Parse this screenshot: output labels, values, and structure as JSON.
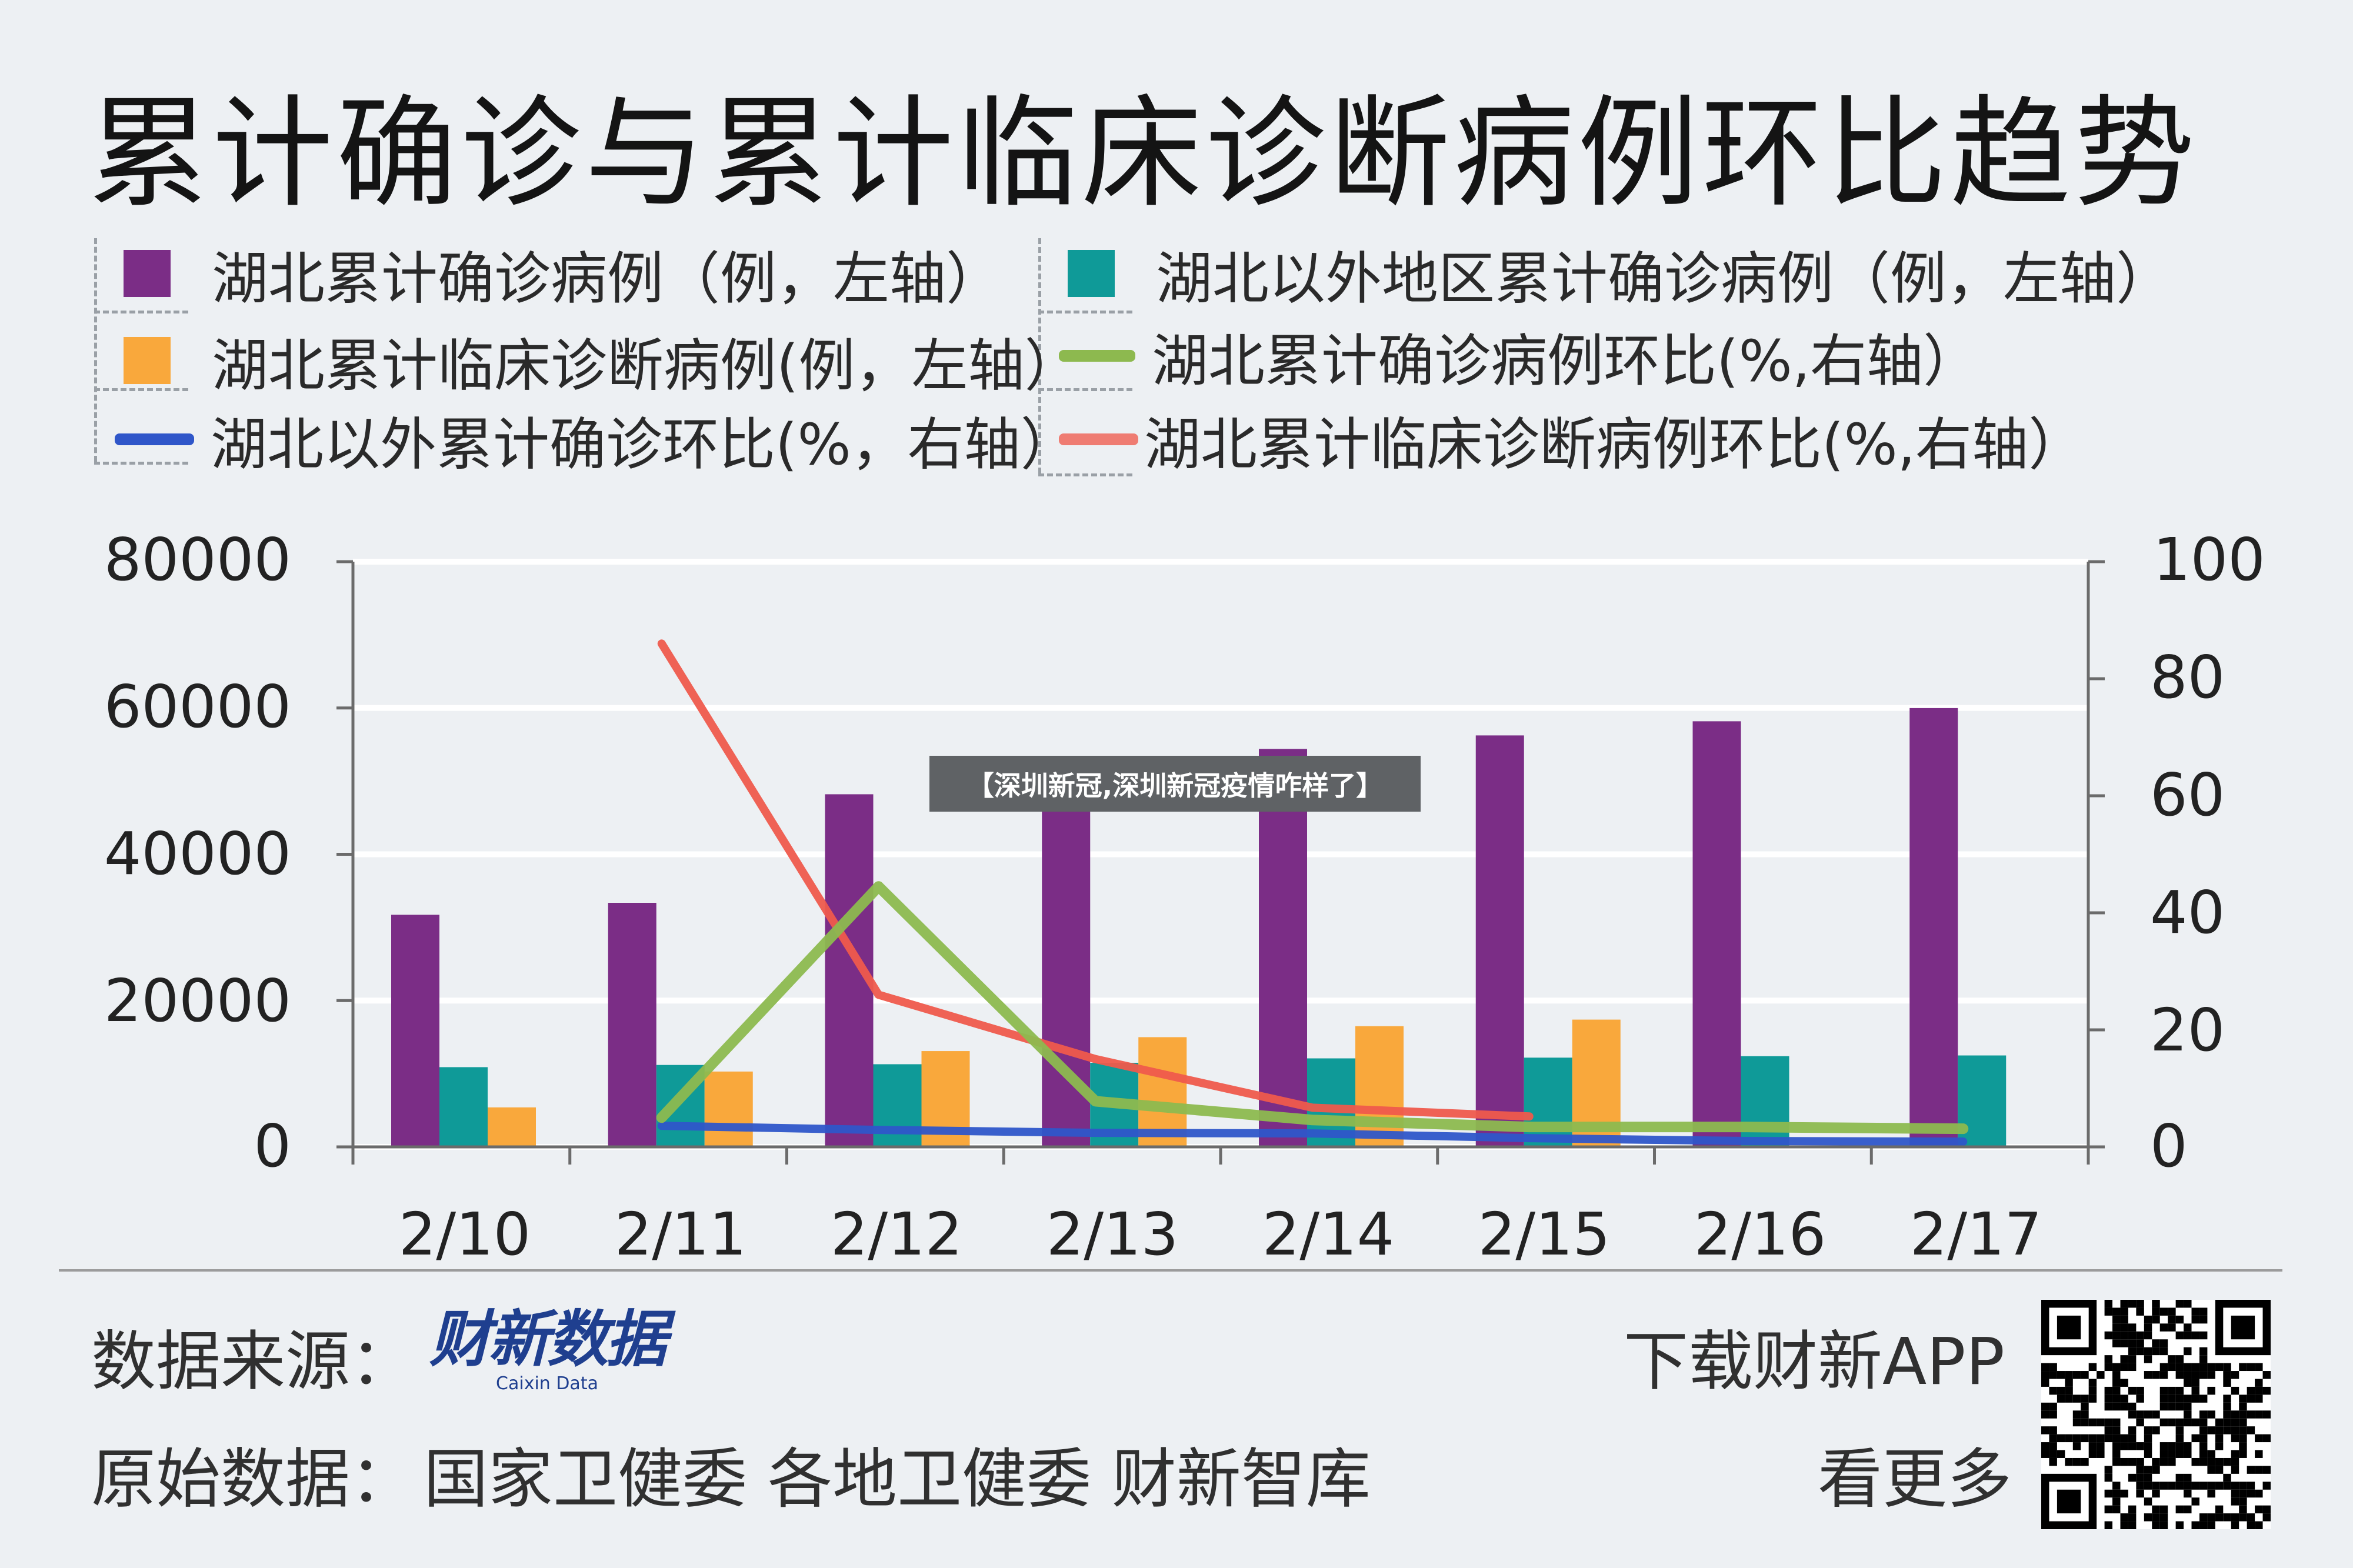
{
  "title": "累计确诊与累计临床诊断病例环比趋势",
  "legend": [
    {
      "label": "湖北累计确诊病例（例，左轴）",
      "color": "#7b2d86",
      "kind": "square"
    },
    {
      "label": "湖北以外地区累计确诊病例（例，左轴）",
      "color": "#0f9a98",
      "kind": "square"
    },
    {
      "label": "湖北累计临床诊断病例(例，左轴）",
      "color": "#f9a83c",
      "kind": "square"
    },
    {
      "label": "湖北累计确诊病例环比(%,右轴）",
      "color": "#8db94f",
      "kind": "line"
    },
    {
      "label": "湖北以外累计确诊环比(%，右轴）",
      "color": "#2f56c9",
      "kind": "line"
    },
    {
      "label": "湖北累计临床诊断病例环比(%,右轴）",
      "color": "#ef7c72",
      "kind": "line"
    }
  ],
  "chart_data": {
    "type": "bar",
    "categories": [
      "2/10",
      "2/11",
      "2/12",
      "2/13",
      "2/14",
      "2/15",
      "2/16",
      "2/17"
    ],
    "left_axis": {
      "ylim": [
        0,
        80000
      ],
      "ticks": [
        "80000",
        "60000",
        "40000",
        "20000",
        "0"
      ]
    },
    "right_axis": {
      "ylim": [
        0,
        100
      ],
      "ticks": [
        "100",
        "80",
        "60",
        "40",
        "20",
        "0"
      ]
    },
    "series": [
      {
        "name": "湖北累计确诊病例（例，左轴）",
        "type": "bar",
        "axis": "left",
        "color": "#7b2d86",
        "values": [
          31728,
          33366,
          48206,
          51986,
          54406,
          56249,
          58182,
          59989
        ]
      },
      {
        "name": "湖北以外地区累计确诊病例（例，左轴）",
        "type": "bar",
        "axis": "left",
        "color": "#0f9a98",
        "values": [
          10900,
          11200,
          11300,
          11500,
          12100,
          12200,
          12400,
          12500
        ]
      },
      {
        "name": "湖北累计临床诊断病例(例，左轴）",
        "type": "bar",
        "axis": "left",
        "color": "#f9a83c",
        "values": [
          5400,
          10300,
          13100,
          15000,
          16500,
          17400,
          null,
          null
        ]
      },
      {
        "name": "湖北累计确诊病例环比(%,右轴）",
        "type": "line",
        "axis": "right",
        "color": "#8db94f",
        "values": [
          null,
          5,
          44.5,
          7.8,
          4.6,
          3.4,
          3.4,
          3.1
        ]
      },
      {
        "name": "湖北以外累计确诊环比(%，右轴）",
        "type": "line",
        "axis": "right",
        "color": "#2f56c9",
        "values": [
          null,
          3.6,
          2.9,
          2.4,
          2.3,
          1.5,
          1,
          0.9
        ]
      },
      {
        "name": "湖北累计临床诊断病例环比(%,右轴）",
        "type": "line",
        "axis": "right",
        "color": "#ef5a4c",
        "values": [
          null,
          86,
          26,
          15,
          6.7,
          5.2,
          null,
          null
        ]
      }
    ]
  },
  "overlay_caption": "【深圳新冠,深圳新冠疫情咋样了】",
  "watermark": "财新数据",
  "footer": {
    "source_label": "数据来源：",
    "brand_cn": "财新数据",
    "brand_en": "Caixin Data",
    "raw_label": "原始数据：",
    "raw_sources": "国家卫健委  各地卫健委  财新智库",
    "download": "下载财新APP",
    "more": "看更多"
  }
}
